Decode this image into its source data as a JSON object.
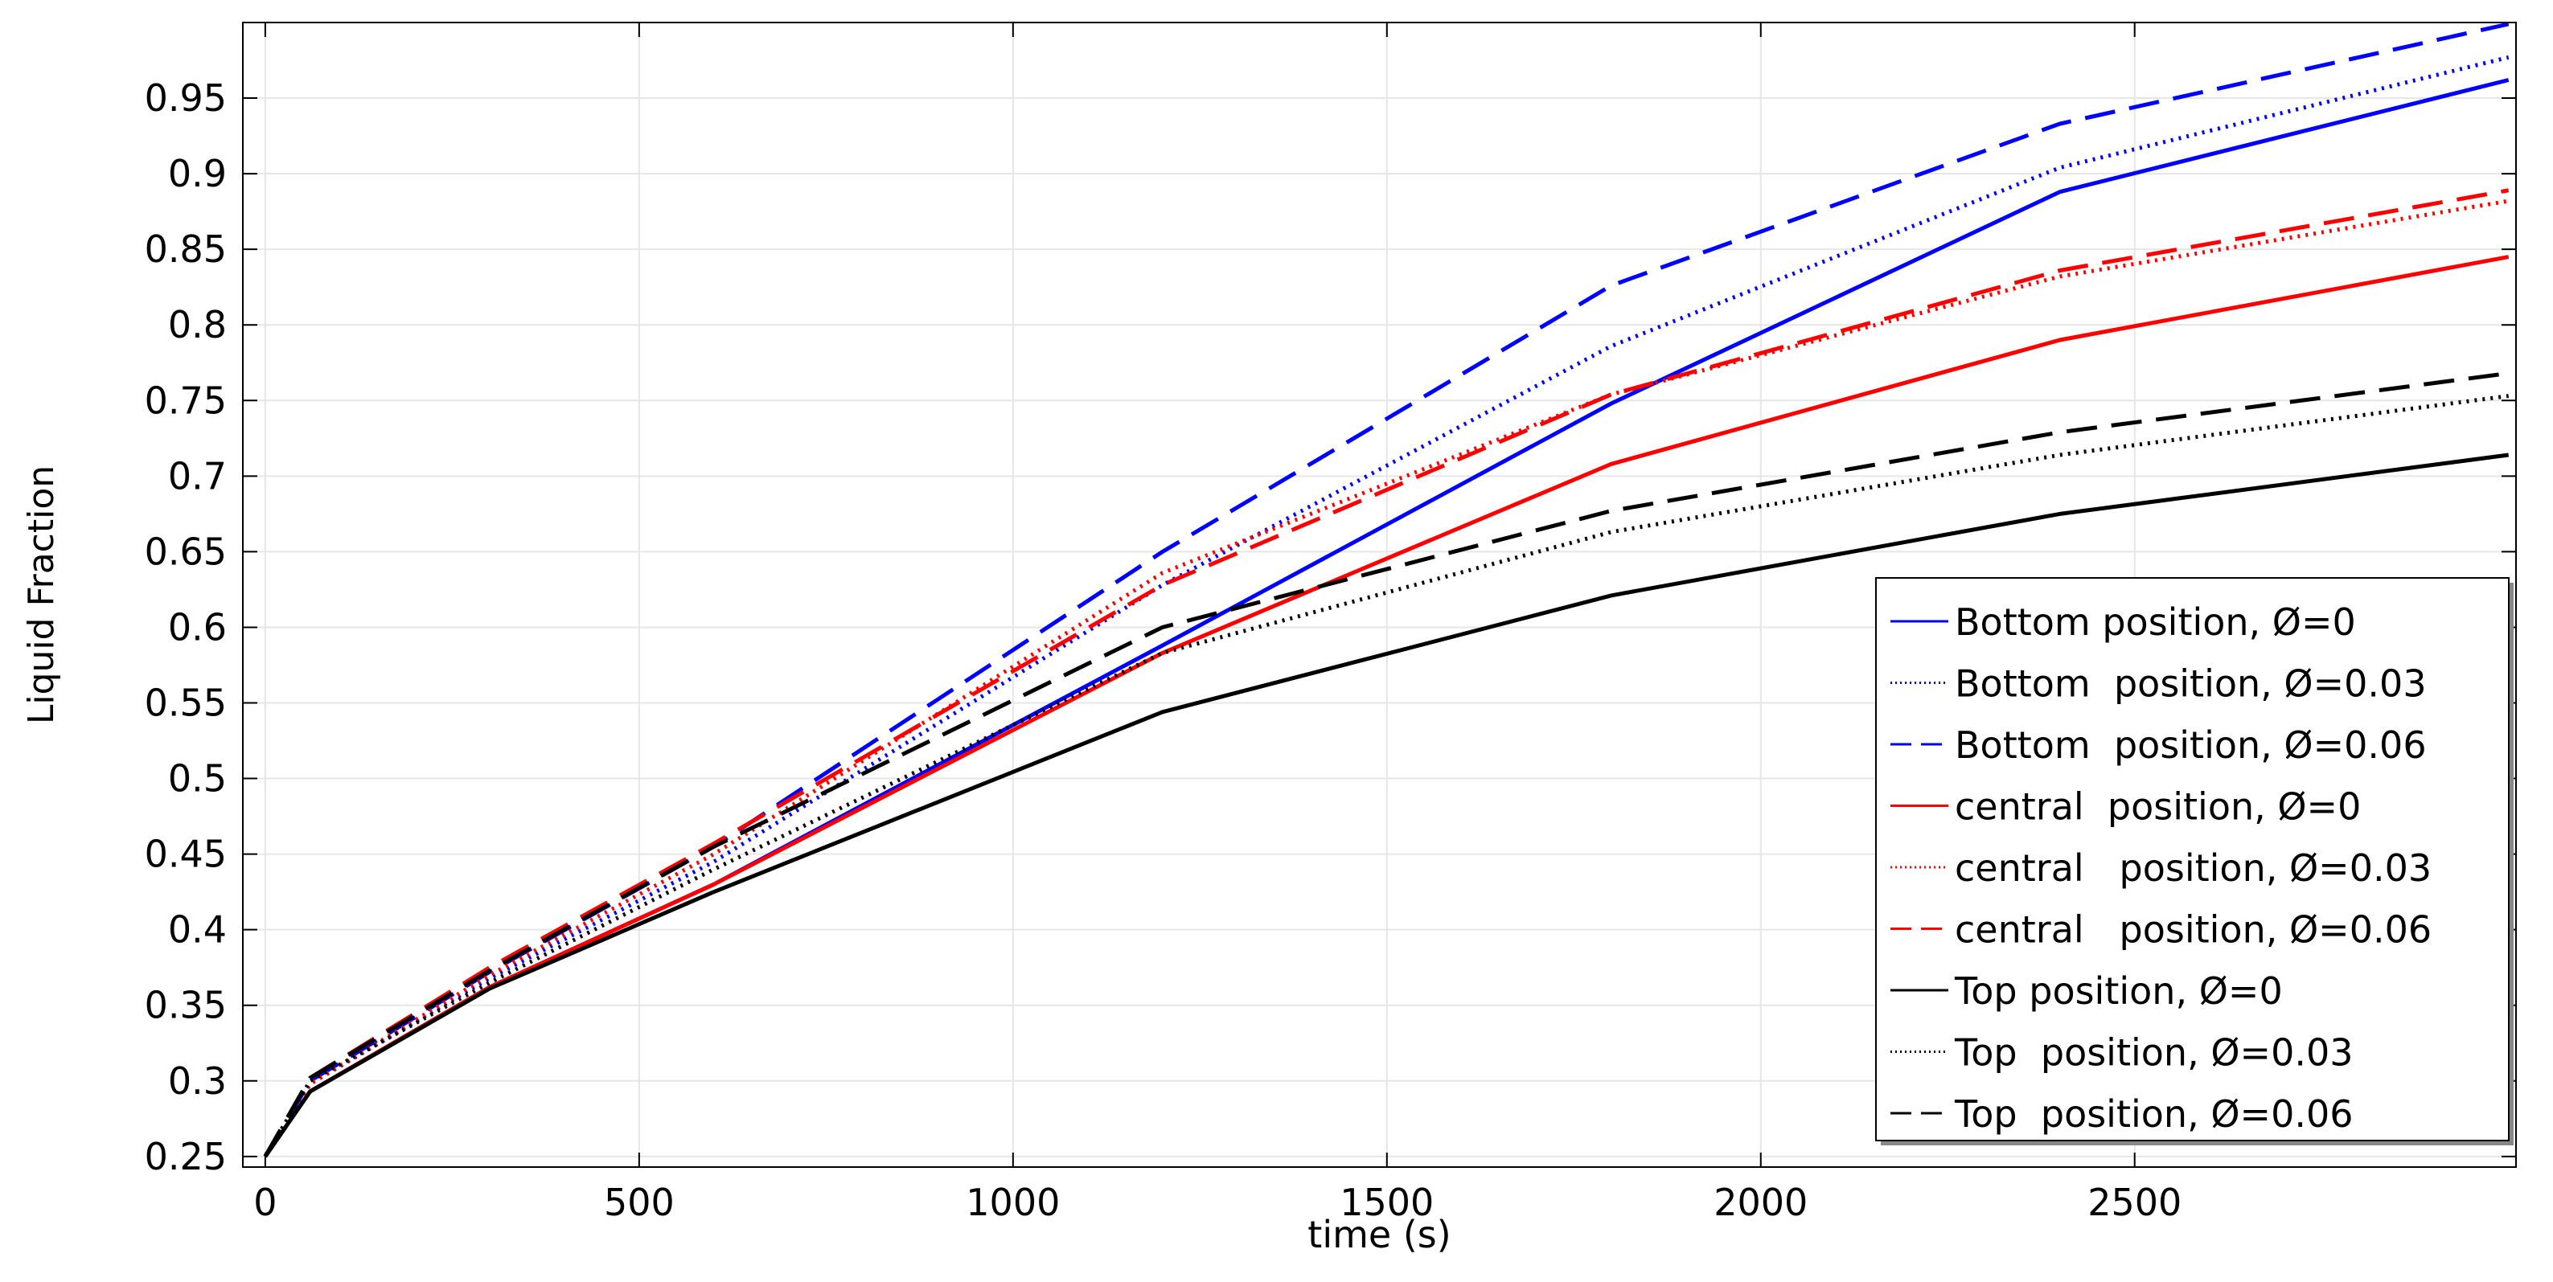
{
  "chart_data": {
    "type": "line",
    "title": "",
    "xlabel": "time (s)",
    "ylabel": "Liquid Fraction",
    "xlim": [
      -30,
      3010
    ],
    "ylim": [
      0.243,
      1.0
    ],
    "xticks": [
      0,
      500,
      1000,
      1500,
      2000,
      2500
    ],
    "xtick_labels": [
      "0",
      "500",
      "1000",
      "1500",
      "2000",
      "2500"
    ],
    "yticks": [
      0.25,
      0.3,
      0.35,
      0.4,
      0.45,
      0.5,
      0.55,
      0.6,
      0.65,
      0.7,
      0.75,
      0.8,
      0.85,
      0.9,
      0.95
    ],
    "ytick_labels": [
      "0.25",
      "0.3",
      "0.35",
      "0.4",
      "0.45",
      "0.5",
      "0.55",
      "0.6",
      "0.65",
      "0.7",
      "0.75",
      "0.8",
      "0.85",
      "0.9",
      "0.95"
    ],
    "grid": true,
    "legend_position": "lower-right",
    "x": [
      0,
      60,
      300,
      600,
      1200,
      1800,
      2400,
      3000
    ],
    "series": [
      {
        "name": "Bottom position, Ø=0",
        "color": "#0000ff",
        "dash": "solid",
        "values": [
          0.25,
          0.293,
          0.362,
          0.43,
          0.588,
          0.748,
          0.888,
          0.962
        ]
      },
      {
        "name": "Bottom  position, Ø=0.03",
        "color": "#0000ff",
        "dash": "dotted",
        "values": [
          0.25,
          0.298,
          0.368,
          0.445,
          0.628,
          0.786,
          0.904,
          0.977
        ]
      },
      {
        "name": "Bottom  position, Ø=0.06",
        "color": "#0000ff",
        "dash": "dashed",
        "values": [
          0.25,
          0.3,
          0.372,
          0.455,
          0.65,
          0.826,
          0.933,
          0.999
        ]
      },
      {
        "name": "central  position, Ø=0",
        "color": "#ff0000",
        "dash": "solid",
        "values": [
          0.25,
          0.293,
          0.362,
          0.43,
          0.583,
          0.708,
          0.79,
          0.845
        ]
      },
      {
        "name": "central   position, Ø=0.03",
        "color": "#ff0000",
        "dash": "dotted",
        "values": [
          0.25,
          0.298,
          0.37,
          0.45,
          0.636,
          0.754,
          0.832,
          0.882
        ]
      },
      {
        "name": "central   position, Ø=0.06",
        "color": "#ff0000",
        "dash": "dashed",
        "values": [
          0.25,
          0.302,
          0.375,
          0.457,
          0.628,
          0.754,
          0.836,
          0.889
        ]
      },
      {
        "name": "Top position, Ø=0",
        "color": "#000000",
        "dash": "solid",
        "values": [
          0.25,
          0.293,
          0.361,
          0.425,
          0.544,
          0.621,
          0.675,
          0.714
        ]
      },
      {
        "name": "Top  position, Ø=0.03",
        "color": "#000000",
        "dash": "dotted",
        "values": [
          0.25,
          0.3,
          0.365,
          0.44,
          0.583,
          0.663,
          0.714,
          0.753
        ]
      },
      {
        "name": "Top  position, Ø=0.06",
        "color": "#000000",
        "dash": "dashed",
        "values": [
          0.25,
          0.302,
          0.373,
          0.455,
          0.6,
          0.677,
          0.729,
          0.768
        ]
      }
    ]
  }
}
